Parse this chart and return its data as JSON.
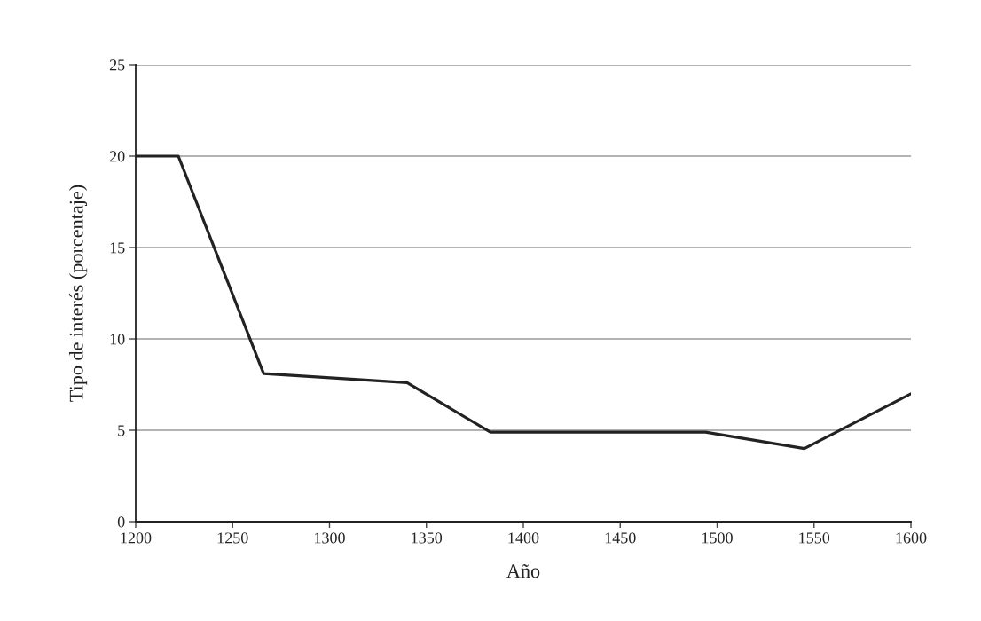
{
  "chart_data": {
    "type": "line",
    "xlabel": "Año",
    "ylabel": "Tipo de interés (porcentaje)",
    "x": [
      1200,
      1222,
      1266,
      1340,
      1383,
      1494,
      1545,
      1600
    ],
    "series": [
      {
        "color": "#222222",
        "values": [
          20,
          20,
          8.1,
          7.6,
          4.9,
          4.9,
          4.0,
          7.0
        ]
      }
    ],
    "xlim": [
      1200,
      1600
    ],
    "xticks": [
      1200,
      1250,
      1300,
      1350,
      1400,
      1450,
      1500,
      1550,
      1600
    ],
    "ylim": [
      0,
      25
    ],
    "yticks": [
      0,
      5,
      10,
      15,
      20,
      25
    ],
    "grid": "y",
    "line_style": "solid"
  }
}
